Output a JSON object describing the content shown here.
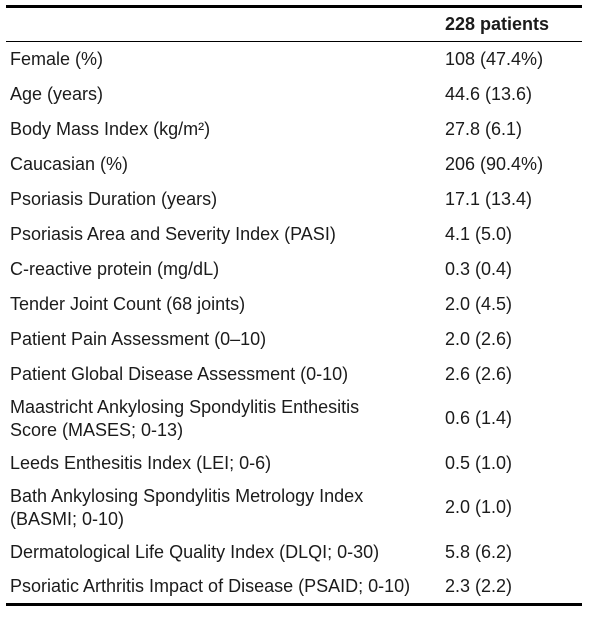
{
  "colors": {
    "border": "#000000",
    "text": "#1b1b1b",
    "background": "#ffffff"
  },
  "table": {
    "header": {
      "empty_label": "",
      "patients_label": "228 patients"
    },
    "rows": [
      {
        "label": "Female (%)",
        "value": "108 (47.4%)"
      },
      {
        "label": "Age (years)",
        "value": "44.6 (13.6)"
      },
      {
        "label": "Body Mass Index (kg/m²)",
        "value": "27.8 (6.1)"
      },
      {
        "label": "Caucasian (%)",
        "value": "206 (90.4%)"
      },
      {
        "label": "Psoriasis Duration (years)",
        "value": "17.1 (13.4)"
      },
      {
        "label": "Psoriasis Area and Severity Index (PASI)",
        "value": "4.1 (5.0)"
      },
      {
        "label": "C-reactive protein (mg/dL)",
        "value": "0.3 (0.4)"
      },
      {
        "label": "Tender Joint Count (68 joints)",
        "value": "2.0 (4.5)"
      },
      {
        "label": "Patient Pain Assessment (0–10)",
        "value": "2.0 (2.6)"
      },
      {
        "label": "Patient Global Disease Assessment (0-10)",
        "value": "2.6 (2.6)"
      },
      {
        "label": "Maastricht Ankylosing Spondylitis Enthesitis\nScore (MASES; 0-13)",
        "value": "0.6 (1.4)"
      },
      {
        "label": "Leeds Enthesitis Index (LEI; 0-6)",
        "value": "0.5 (1.0)"
      },
      {
        "label": "Bath Ankylosing Spondylitis Metrology Index\n(BASMI; 0-10)",
        "value": "2.0 (1.0)"
      },
      {
        "label": "Dermatological Life Quality Index (DLQI; 0-30)",
        "value": "5.8 (6.2)"
      },
      {
        "label": "Psoriatic Arthritis Impact of Disease (PSAID; 0-10)",
        "value": "2.3 (2.2)"
      }
    ]
  }
}
